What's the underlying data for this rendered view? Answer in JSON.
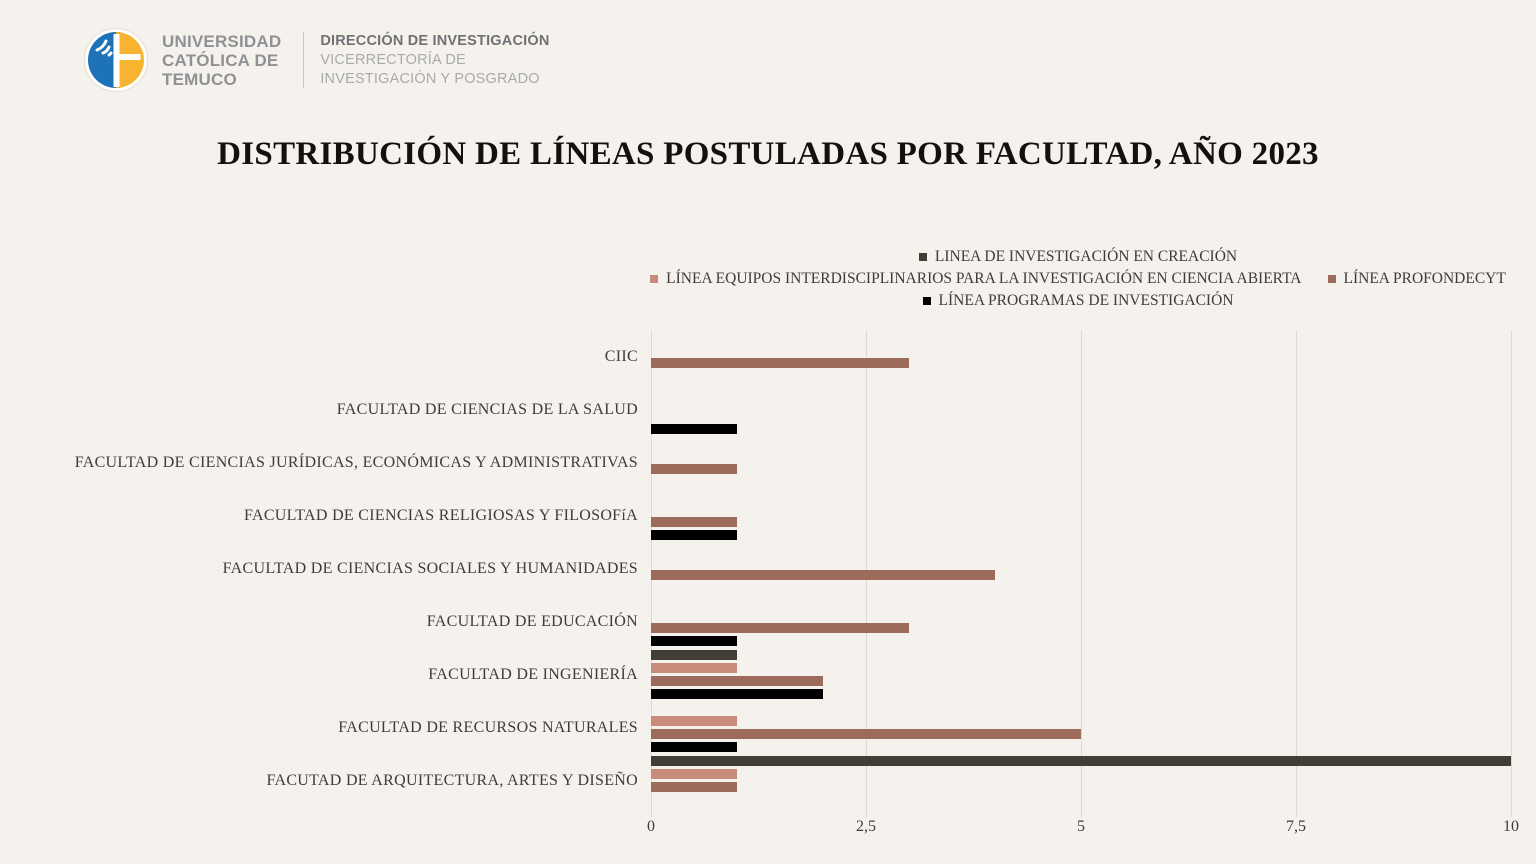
{
  "header": {
    "university": [
      "UNIVERSIDAD",
      "CATÓLICA DE",
      "TEMUCO"
    ],
    "dept": [
      "DIRECCIÓN DE INVESTIGACIÓN",
      "VICERRECTORÍA DE",
      "INVESTIGACIÓN Y POSGRADO"
    ],
    "logo_colors": {
      "blue": "#1e73b8",
      "yellow": "#f7b431"
    }
  },
  "title": "DISTRIBUCIÓN DE LÍNEAS POSTULADAS POR FACULTAD, AÑO 2023",
  "chart_data": {
    "type": "bar",
    "orientation": "horizontal",
    "title": "DISTRIBUCIÓN DE LÍNEAS POSTULADAS POR FACULTAD, AÑO 2023",
    "categories": [
      "CIIC",
      "FACULTAD DE CIENCIAS DE LA SALUD",
      "FACULTAD DE CIENCIAS JURÍDICAS, ECONÓMICAS Y ADMINISTRATIVAS",
      "FACULTAD DE CIENCIAS RELIGIOSAS Y FILOSOFíA",
      "FACULTAD DE CIENCIAS SOCIALES Y HUMANIDADES",
      "FACULTAD DE EDUCACIÓN",
      "FACULTAD DE INGENIERÍA",
      "FACULTAD DE RECURSOS NATURALES",
      "FACUTAD DE ARQUITECTURA, ARTES Y DISEÑO"
    ],
    "series": [
      {
        "name": "LINEA DE INVESTIGACIÓN EN CREACIÓN",
        "color": "#423d36",
        "values": [
          0,
          0,
          0,
          0,
          0,
          0,
          1,
          0,
          10
        ]
      },
      {
        "name": "LÍNEA EQUIPOS INTERDISCIPLINARIOS PARA LA INVESTIGACIÓN EN CIENCIA ABIERTA",
        "color": "#c98b7a",
        "values": [
          0,
          0,
          0,
          0,
          0,
          0,
          1,
          1,
          1
        ]
      },
      {
        "name": "LÍNEA PROFONDECYT",
        "color": "#9c6b5c",
        "values": [
          3,
          0,
          1,
          1,
          4,
          3,
          2,
          5,
          1
        ]
      },
      {
        "name": "LÍNEA PROGRAMAS DE INVESTIGACIÓN",
        "color": "#000000",
        "values": [
          0,
          1,
          0,
          1,
          0,
          1,
          2,
          1,
          0
        ]
      }
    ],
    "xlim": [
      0,
      10
    ],
    "x_ticks": [
      "0",
      "2,5",
      "5",
      "7,5",
      "10"
    ],
    "grid": true,
    "legend_position": "top-center-of-plot",
    "background": "#f5f2ee",
    "gridline_color": "#dcd9d2"
  }
}
